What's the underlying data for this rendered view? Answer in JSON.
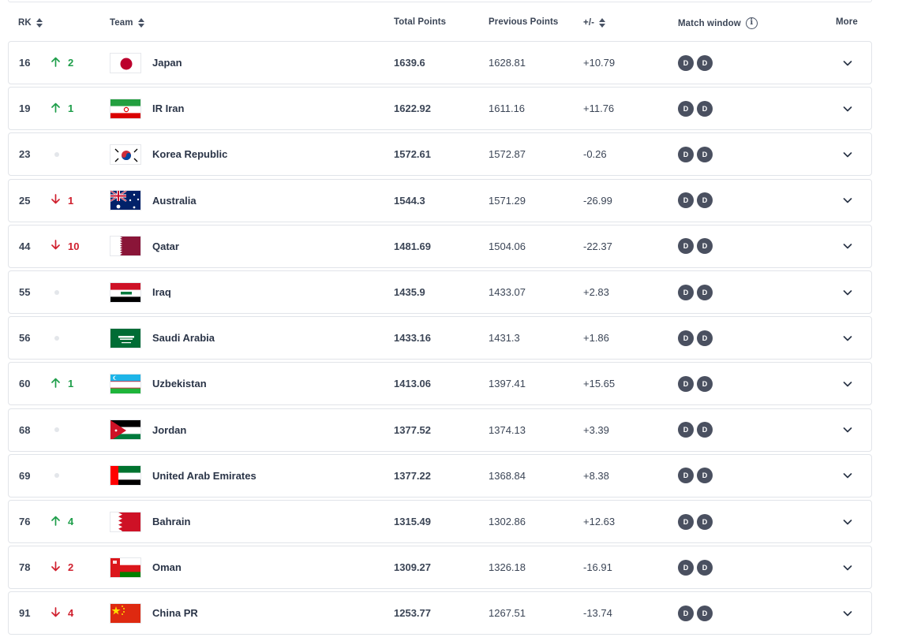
{
  "columns": {
    "rank": "RK",
    "team": "Team",
    "total": "Total Points",
    "previous": "Previous Points",
    "diff": "+/-",
    "match_window": "Match window",
    "more": "More"
  },
  "icons": {
    "sort": "sort-icon",
    "info": "info-icon",
    "up": "arrow-up-icon",
    "down": "arrow-down-icon",
    "same": "no-change-dot-icon",
    "expand": "chevron-down-icon"
  },
  "colors": {
    "up": "#1e9e4a",
    "down": "#d0202e",
    "badge": "#4a5060"
  },
  "rows": [
    {
      "rank": "16",
      "move": "up",
      "move_value": "2",
      "team": "Japan",
      "flag": "japan",
      "total": "1639.6",
      "previous": "1628.81",
      "diff": "+10.79",
      "badges": [
        "D",
        "D"
      ]
    },
    {
      "rank": "19",
      "move": "up",
      "move_value": "1",
      "team": "IR Iran",
      "flag": "iran",
      "total": "1622.92",
      "previous": "1611.16",
      "diff": "+11.76",
      "badges": [
        "D",
        "D"
      ]
    },
    {
      "rank": "23",
      "move": "same",
      "move_value": "",
      "team": "Korea Republic",
      "flag": "korea",
      "total": "1572.61",
      "previous": "1572.87",
      "diff": "-0.26",
      "badges": [
        "D",
        "D"
      ]
    },
    {
      "rank": "25",
      "move": "down",
      "move_value": "1",
      "team": "Australia",
      "flag": "australia",
      "total": "1544.3",
      "previous": "1571.29",
      "diff": "-26.99",
      "badges": [
        "D",
        "D"
      ]
    },
    {
      "rank": "44",
      "move": "down",
      "move_value": "10",
      "team": "Qatar",
      "flag": "qatar",
      "total": "1481.69",
      "previous": "1504.06",
      "diff": "-22.37",
      "badges": [
        "D",
        "D"
      ]
    },
    {
      "rank": "55",
      "move": "same",
      "move_value": "",
      "team": "Iraq",
      "flag": "iraq",
      "total": "1435.9",
      "previous": "1433.07",
      "diff": "+2.83",
      "badges": [
        "D",
        "D"
      ]
    },
    {
      "rank": "56",
      "move": "same",
      "move_value": "",
      "team": "Saudi Arabia",
      "flag": "saudi",
      "total": "1433.16",
      "previous": "1431.3",
      "diff": "+1.86",
      "badges": [
        "D",
        "D"
      ]
    },
    {
      "rank": "60",
      "move": "up",
      "move_value": "1",
      "team": "Uzbekistan",
      "flag": "uzbekistan",
      "total": "1413.06",
      "previous": "1397.41",
      "diff": "+15.65",
      "badges": [
        "D",
        "D"
      ]
    },
    {
      "rank": "68",
      "move": "same",
      "move_value": "",
      "team": "Jordan",
      "flag": "jordan",
      "total": "1377.52",
      "previous": "1374.13",
      "diff": "+3.39",
      "badges": [
        "D",
        "D"
      ]
    },
    {
      "rank": "69",
      "move": "same",
      "move_value": "",
      "team": "United Arab Emirates",
      "flag": "uae",
      "total": "1377.22",
      "previous": "1368.84",
      "diff": "+8.38",
      "badges": [
        "D",
        "D"
      ]
    },
    {
      "rank": "76",
      "move": "up",
      "move_value": "4",
      "team": "Bahrain",
      "flag": "bahrain",
      "total": "1315.49",
      "previous": "1302.86",
      "diff": "+12.63",
      "badges": [
        "D",
        "D"
      ]
    },
    {
      "rank": "78",
      "move": "down",
      "move_value": "2",
      "team": "Oman",
      "flag": "oman",
      "total": "1309.27",
      "previous": "1326.18",
      "diff": "-16.91",
      "badges": [
        "D",
        "D"
      ]
    },
    {
      "rank": "91",
      "move": "down",
      "move_value": "4",
      "team": "China PR",
      "flag": "china",
      "total": "1253.77",
      "previous": "1267.51",
      "diff": "-13.74",
      "badges": [
        "D",
        "D"
      ]
    }
  ]
}
